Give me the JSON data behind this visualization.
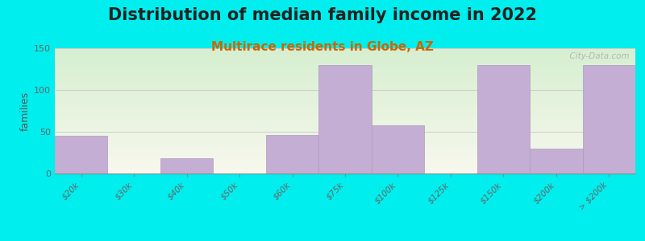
{
  "title": "Distribution of median family income in 2022",
  "subtitle": "Multirace residents in Globe, AZ",
  "ylabel": "families",
  "background_outer": "#00EEEE",
  "bar_color": "#c4aed4",
  "bar_edge_color": "#b09abe",
  "grid_color": "#cccccc",
  "categories": [
    "$20k",
    "$30k",
    "$40k",
    "$50k",
    "$60k",
    "$75k",
    "$100k",
    "$125k",
    "$150k",
    "$200k",
    "> $200k"
  ],
  "values": [
    45,
    0,
    18,
    0,
    46,
    130,
    58,
    0,
    130,
    30,
    130
  ],
  "ylim": [
    0,
    150
  ],
  "yticks": [
    0,
    50,
    100,
    150
  ],
  "title_fontsize": 15,
  "subtitle_fontsize": 11,
  "subtitle_color": "#cc6600",
  "watermark": "  City-Data.com",
  "bg_top_color": "#d6efd0",
  "bg_bottom_color": "#f8f8ee"
}
